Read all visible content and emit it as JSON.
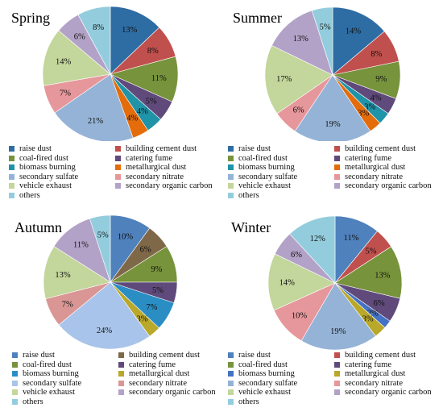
{
  "chart_data": [
    {
      "type": "pie",
      "title": "Spring",
      "categories": [
        "raise dust",
        "building cement dust",
        "coal-fired dust",
        "catering fume",
        "biomass burning",
        "metallurgical dust",
        "secondary sulfate",
        "secondary nitrate",
        "vehicle exhaust",
        "secondary organic carbon",
        "others"
      ],
      "values": [
        13,
        8,
        11,
        5,
        4,
        4,
        21,
        7,
        14,
        6,
        8
      ],
      "labels": [
        "13%",
        "8%",
        "11%",
        "5%",
        "4%",
        "4%",
        "21%",
        "7%",
        "14%",
        "6%",
        "8%"
      ],
      "colors": [
        "#2e6da4",
        "#c0504d",
        "#77933c",
        "#604a7b",
        "#1f93a8",
        "#e46c0a",
        "#95b3d7",
        "#e6979b",
        "#c3d69b",
        "#b3a2c7",
        "#93cddd"
      ],
      "legend": "bottom"
    },
    {
      "type": "pie",
      "title": "Summer",
      "categories": [
        "raise dust",
        "building cement dust",
        "coal-fired dust",
        "catering fume",
        "biomass burning",
        "metallurgical dust",
        "secondary sulfate",
        "secondary nitrate",
        "vehicle exhaust",
        "secondary organic carbon",
        "others"
      ],
      "values": [
        14,
        8,
        9,
        4,
        3,
        3,
        19,
        6,
        17,
        13,
        5
      ],
      "labels": [
        "14%",
        "8%",
        "9%",
        "4%",
        "3%",
        "3%",
        "19%",
        "6%",
        "17%",
        "13%",
        "5%"
      ],
      "colors": [
        "#2e6da4",
        "#c0504d",
        "#77933c",
        "#604a7b",
        "#1f93a8",
        "#e46c0a",
        "#95b3d7",
        "#e6979b",
        "#c3d69b",
        "#b3a2c7",
        "#93cddd"
      ],
      "legend": "bottom"
    },
    {
      "type": "pie",
      "title": "Autumn",
      "categories": [
        "raise dust",
        "building cement dust",
        "coal-fired dust",
        "catering fume",
        "biomass burning",
        "metallurgical dust",
        "secondary sulfate",
        "secondary nitrate",
        "vehicle exhaust",
        "secondary organic carbon",
        "others"
      ],
      "values": [
        10,
        6,
        9,
        5,
        7,
        3,
        24,
        7,
        13,
        11,
        5
      ],
      "labels": [
        "10%",
        "6%",
        "9%",
        "5%",
        "7%",
        "3%",
        "24%",
        "7%",
        "13%",
        "11%",
        "5%"
      ],
      "colors": [
        "#4f81bd",
        "#7f6848",
        "#77933c",
        "#604a7b",
        "#2a8ec4",
        "#b9a82a",
        "#a9c4ea",
        "#d99694",
        "#c3d69b",
        "#b3a2c7",
        "#93cddd"
      ],
      "legend": "bottom"
    },
    {
      "type": "pie",
      "title": "Winter",
      "categories": [
        "raise dust",
        "building cement dust",
        "coal-fired dust",
        "catering fume",
        "biomass burning",
        "metallurgical dust",
        "secondary sulfate",
        "secondary nitrate",
        "vehicle exhaust",
        "secondary organic carbon",
        "others"
      ],
      "values": [
        11,
        5,
        13,
        6,
        2,
        3,
        19,
        10,
        14,
        6,
        12
      ],
      "labels": [
        "11%",
        "5%",
        "13%",
        "6%",
        "2%",
        "3%",
        "19%",
        "10%",
        "14%",
        "6%",
        "12%"
      ],
      "colors": [
        "#4f81bd",
        "#c0504d",
        "#77933c",
        "#604a7b",
        "#4472c4",
        "#b9a82a",
        "#95b3d7",
        "#e6979b",
        "#c3d69b",
        "#b3a2c7",
        "#93cddd"
      ],
      "legend": "bottom"
    }
  ]
}
